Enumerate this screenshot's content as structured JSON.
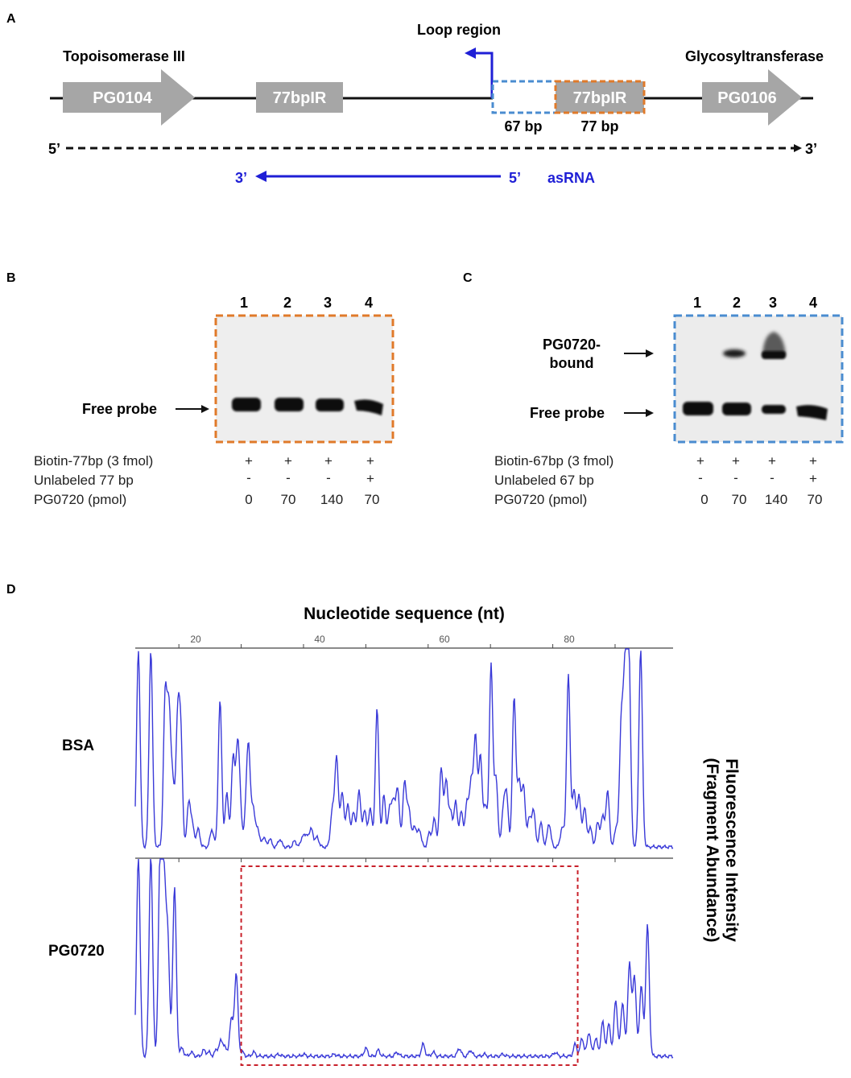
{
  "panel_a": {
    "letter": "A",
    "gene_left_name": "Topoisomerase III",
    "gene_left_id": "PG0104",
    "ir_left": "77bpIR",
    "loop_label": "Loop region",
    "ir_right": "77bpIR",
    "bp67_label": "67 bp",
    "bp77_label": "77 bp",
    "gene_right_name": "Glycosyltransferase",
    "gene_right_id": "PG0106",
    "strand_5": "5’",
    "strand_3": "3’",
    "asrna_3": "3’",
    "asrna_5": "5’",
    "asrna_label": "asRNA",
    "colors": {
      "gene": "#a6a6a6",
      "asrna": "#1f1fd6",
      "orange": "#e07a2a",
      "blue_box": "#4a8cd0"
    }
  },
  "panel_b": {
    "letter": "B",
    "lanes": [
      "1",
      "2",
      "3",
      "4"
    ],
    "free_probe_label": "Free probe",
    "rows": [
      {
        "label": "Biotin-77bp (3 fmol)",
        "values": [
          "+",
          "+",
          "+",
          "+"
        ]
      },
      {
        "label": "Unlabeled 77 bp",
        "values": [
          "-",
          "-",
          "-",
          "+"
        ]
      },
      {
        "label": "PG0720 (pmol)",
        "values": [
          "0",
          "70",
          "140",
          "70"
        ]
      }
    ]
  },
  "panel_c": {
    "letter": "C",
    "lanes": [
      "1",
      "2",
      "3",
      "4"
    ],
    "bound_label_1": "PG0720-",
    "bound_label_2": "bound",
    "free_probe_label": "Free probe",
    "rows": [
      {
        "label": "Biotin-67bp (3 fmol)",
        "values": [
          "+",
          "+",
          "+",
          "+"
        ]
      },
      {
        "label": "Unlabeled 67 bp",
        "values": [
          "-",
          "-",
          "-",
          "+"
        ]
      },
      {
        "label": "PG0720 (pmol)",
        "values": [
          "0",
          "70",
          "140",
          "70"
        ]
      }
    ]
  },
  "panel_d": {
    "letter": "D",
    "xlabel": "Nucleotide sequence (nt)",
    "ticks": [
      "20",
      "40",
      "60",
      "80"
    ],
    "track_top": "BSA",
    "track_bottom": "PG0720",
    "ylabel_1": "Fluorescence Intensity",
    "ylabel_2": "(Fragment Abundance)"
  },
  "chart_data": {
    "type": "line",
    "title": "Nucleotide sequence (nt)",
    "xlabel": "Nucleotide sequence (nt)",
    "ylabel": "Fluorescence Intensity (Fragment Abundance)",
    "xlim": [
      13,
      95
    ],
    "ylim": [
      0,
      100
    ],
    "series": [
      {
        "name": "BSA",
        "peaks": [
          [
            13.5,
            100
          ],
          [
            15.5,
            100
          ],
          [
            17.8,
            75
          ],
          [
            18.4,
            66
          ],
          [
            19,
            32
          ],
          [
            19.8,
            62
          ],
          [
            20.3,
            54
          ],
          [
            21.6,
            23
          ],
          [
            22.2,
            10
          ],
          [
            23.1,
            9
          ],
          [
            25.3,
            9
          ],
          [
            26.6,
            74
          ],
          [
            27.7,
            27
          ],
          [
            28.7,
            45
          ],
          [
            29.4,
            45
          ],
          [
            29.8,
            20
          ],
          [
            30.8,
            18
          ],
          [
            31.2,
            45
          ],
          [
            31.9,
            19
          ],
          [
            32.6,
            10
          ],
          [
            33.6,
            5
          ],
          [
            34.6,
            4
          ],
          [
            36.2,
            4
          ],
          [
            38.6,
            3
          ],
          [
            39.9,
            6
          ],
          [
            40.6,
            6
          ],
          [
            41.3,
            9
          ],
          [
            42.2,
            5
          ],
          [
            44.6,
            18
          ],
          [
            45.3,
            46
          ],
          [
            46.2,
            28
          ],
          [
            47.1,
            22
          ],
          [
            48,
            18
          ],
          [
            48.9,
            29
          ],
          [
            49.8,
            19
          ],
          [
            50.7,
            20
          ],
          [
            51.8,
            70
          ],
          [
            52.9,
            26
          ],
          [
            53.8,
            18
          ],
          [
            54.4,
            22
          ],
          [
            55.1,
            30
          ],
          [
            56.2,
            33
          ],
          [
            56.9,
            20
          ],
          [
            57.8,
            11
          ],
          [
            58.6,
            9
          ],
          [
            60.2,
            7
          ],
          [
            61,
            14
          ],
          [
            62.1,
            40
          ],
          [
            62.9,
            33
          ],
          [
            63.6,
            17
          ],
          [
            64.4,
            23
          ],
          [
            65.3,
            18
          ],
          [
            66.2,
            22
          ],
          [
            66.9,
            33
          ],
          [
            67.6,
            56
          ],
          [
            68.4,
            46
          ],
          [
            69.2,
            20
          ],
          [
            70.1,
            92
          ],
          [
            70.9,
            34
          ],
          [
            72.1,
            19
          ],
          [
            72.6,
            24
          ],
          [
            73.8,
            76
          ],
          [
            74.6,
            32
          ],
          [
            75.3,
            30
          ],
          [
            76.2,
            14
          ],
          [
            76.9,
            19
          ],
          [
            78.1,
            12
          ],
          [
            79.4,
            12
          ],
          [
            81.5,
            10
          ],
          [
            82.5,
            87
          ],
          [
            83.4,
            28
          ],
          [
            84.2,
            26
          ],
          [
            85.1,
            20
          ],
          [
            86,
            10
          ],
          [
            87.2,
            12
          ],
          [
            88,
            15
          ],
          [
            88.8,
            28
          ],
          [
            90.2,
            10
          ],
          [
            91,
            62
          ],
          [
            91.6,
            83
          ],
          [
            92.2,
            100
          ],
          [
            94.1,
            100
          ]
        ]
      },
      {
        "name": "PG0720",
        "peaks": [
          [
            13.5,
            100
          ],
          [
            15.5,
            100
          ],
          [
            17,
            100
          ],
          [
            17.6,
            82
          ],
          [
            18.2,
            59
          ],
          [
            19.3,
            84
          ],
          [
            20.5,
            4
          ],
          [
            22,
            2
          ],
          [
            24,
            3
          ],
          [
            24.8,
            2
          ],
          [
            26,
            3
          ],
          [
            26.7,
            7
          ],
          [
            27.3,
            5
          ],
          [
            28.4,
            18
          ],
          [
            29.2,
            41
          ],
          [
            30.2,
            2
          ],
          [
            32,
            2
          ],
          [
            36,
            1
          ],
          [
            40,
            1
          ],
          [
            45,
            1
          ],
          [
            50,
            4
          ],
          [
            52,
            3
          ],
          [
            55,
            2
          ],
          [
            59.2,
            6
          ],
          [
            60.8,
            2
          ],
          [
            65,
            4
          ],
          [
            66.8,
            3
          ],
          [
            69,
            1
          ],
          [
            72,
            1
          ],
          [
            80.4,
            2
          ],
          [
            83.6,
            6
          ],
          [
            84.7,
            9
          ],
          [
            85.8,
            12
          ],
          [
            86.9,
            9
          ],
          [
            88,
            17
          ],
          [
            89,
            16
          ],
          [
            90.1,
            28
          ],
          [
            91.2,
            27
          ],
          [
            92.3,
            46
          ],
          [
            93.1,
            40
          ],
          [
            94.2,
            35
          ],
          [
            95.2,
            65
          ]
        ]
      }
    ],
    "highlight_region": [
      30,
      84
    ]
  }
}
